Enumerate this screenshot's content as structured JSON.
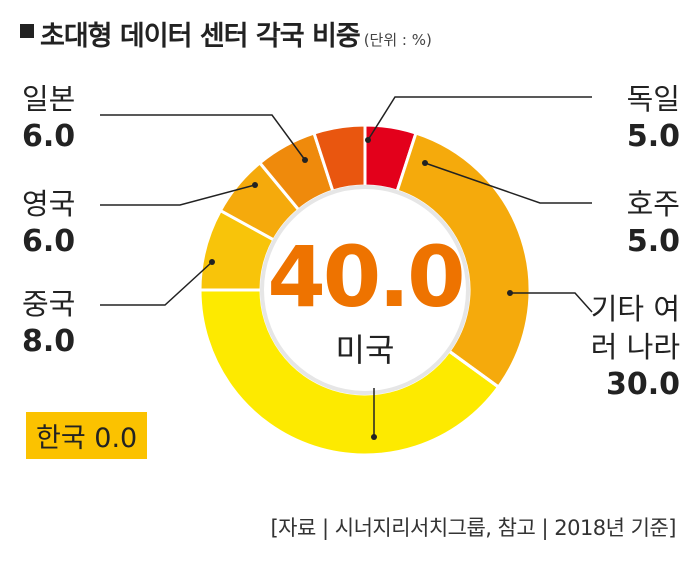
{
  "chart_data": {
    "type": "donut",
    "title": "초대형 데이터 센터 각국 비중",
    "subtitle": "(단위 : %)",
    "categories": [
      "미국",
      "중국",
      "영국",
      "일본",
      "독일",
      "호주",
      "기타 여러 나라",
      "한국"
    ],
    "values": [
      40,
      8,
      6,
      6,
      5,
      5,
      30,
      0
    ],
    "value_labels": [
      "40.0",
      "8.0",
      "6.0",
      "6.0",
      "5.0",
      "5.0",
      "30.0",
      "0.0"
    ],
    "colors": [
      "#fdea00",
      "#f8c40a",
      "#f5aa0c",
      "#ef8a0c",
      "#e9560f",
      "#e3001b",
      "#f5aa0c",
      "#fbc200"
    ],
    "source": "[자료 | 시너지리서치그룹, 참고 | 2018년 기준]"
  }
}
